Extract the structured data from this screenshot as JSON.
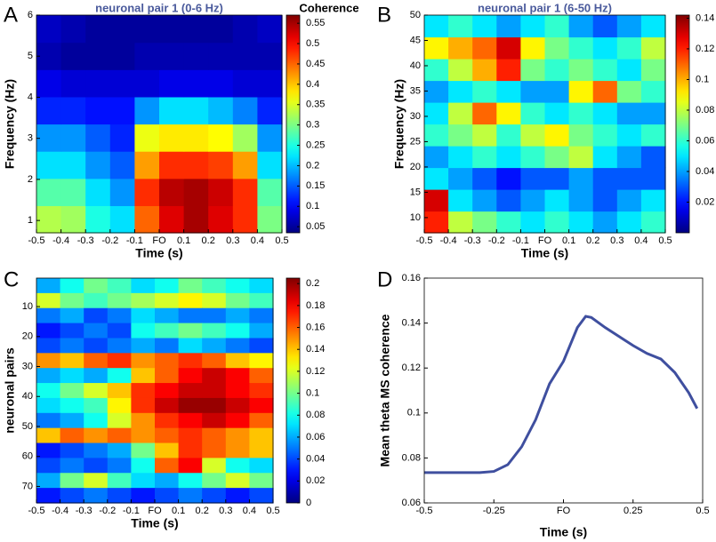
{
  "chart_data": [
    {
      "type": "heatmap",
      "label": "A",
      "title": "neuronal pair 1 (0-6 Hz)",
      "xlabel": "Time (s)",
      "ylabel": "Frequency (Hz)",
      "colorbar_label": "Coherence",
      "xlim": [
        -0.5,
        0.5
      ],
      "ylim": [
        0.7,
        6
      ],
      "clim": [
        0.035,
        0.57
      ],
      "xticks": [
        -0.5,
        -0.4,
        -0.3,
        -0.2,
        -0.1,
        {
          "value": 0,
          "label": "FO"
        },
        0.1,
        0.2,
        0.3,
        0.4,
        0.5
      ],
      "yticks": [
        1,
        2,
        3,
        4,
        5,
        6
      ],
      "cticks": [
        0.05,
        0.1,
        0.15,
        0.2,
        0.25,
        0.3,
        0.35,
        0.4,
        0.45,
        0.5,
        0.55
      ],
      "z": [
        [
          0.33,
          0.32,
          0.25,
          0.22,
          0.45,
          0.52,
          0.55,
          0.52,
          0.48,
          0.3
        ],
        [
          0.28,
          0.28,
          0.22,
          0.18,
          0.48,
          0.54,
          0.55,
          0.53,
          0.48,
          0.28
        ],
        [
          0.22,
          0.22,
          0.18,
          0.15,
          0.42,
          0.48,
          0.48,
          0.47,
          0.42,
          0.22
        ],
        [
          0.18,
          0.18,
          0.15,
          0.12,
          0.36,
          0.38,
          0.38,
          0.37,
          0.32,
          0.18
        ],
        [
          0.12,
          0.12,
          0.11,
          0.11,
          0.18,
          0.22,
          0.22,
          0.2,
          0.17,
          0.12
        ],
        [
          0.09,
          0.08,
          0.08,
          0.08,
          0.08,
          0.09,
          0.09,
          0.09,
          0.08,
          0.08
        ],
        [
          0.06,
          0.05,
          0.05,
          0.05,
          0.06,
          0.06,
          0.06,
          0.06,
          0.06,
          0.06
        ],
        [
          0.07,
          0.06,
          0.05,
          0.05,
          0.05,
          0.05,
          0.05,
          0.05,
          0.06,
          0.07
        ]
      ]
    },
    {
      "type": "heatmap",
      "label": "B",
      "title": "neuronal pair 1 (6-50 Hz)",
      "xlabel": "Time (s)",
      "ylabel": "Frequency (Hz)",
      "xlim": [
        -0.5,
        0.5
      ],
      "ylim": [
        7,
        50
      ],
      "clim": [
        0,
        0.142
      ],
      "xticks": [
        -0.5,
        -0.4,
        -0.3,
        -0.2,
        -0.1,
        {
          "value": 0,
          "label": "FO"
        },
        0.1,
        0.2,
        0.3,
        0.4,
        0.5
      ],
      "yticks": [
        10,
        15,
        20,
        25,
        30,
        35,
        40,
        45,
        50
      ],
      "cticks": [
        0.02,
        0.04,
        0.06,
        0.08,
        0.1,
        0.12,
        0.14
      ],
      "z": [
        [
          0.12,
          0.08,
          0.07,
          0.06,
          0.05,
          0.06,
          0.05,
          0.04,
          0.05,
          0.06
        ],
        [
          0.13,
          0.05,
          0.04,
          0.03,
          0.04,
          0.05,
          0.04,
          0.03,
          0.04,
          0.05
        ],
        [
          0.05,
          0.04,
          0.03,
          0.02,
          0.03,
          0.03,
          0.04,
          0.03,
          0.03,
          0.03
        ],
        [
          0.04,
          0.05,
          0.06,
          0.05,
          0.06,
          0.07,
          0.08,
          0.05,
          0.04,
          0.03
        ],
        [
          0.06,
          0.07,
          0.08,
          0.06,
          0.08,
          0.09,
          0.07,
          0.06,
          0.05,
          0.06
        ],
        [
          0.05,
          0.08,
          0.11,
          0.09,
          0.06,
          0.05,
          0.06,
          0.05,
          0.04,
          0.04
        ],
        [
          0.04,
          0.05,
          0.06,
          0.05,
          0.04,
          0.04,
          0.09,
          0.11,
          0.07,
          0.06
        ],
        [
          0.06,
          0.08,
          0.1,
          0.12,
          0.07,
          0.06,
          0.07,
          0.06,
          0.05,
          0.07
        ],
        [
          0.09,
          0.1,
          0.11,
          0.13,
          0.09,
          0.07,
          0.06,
          0.05,
          0.06,
          0.08
        ],
        [
          0.05,
          0.06,
          0.05,
          0.04,
          0.05,
          0.06,
          0.04,
          0.03,
          0.04,
          0.05
        ]
      ]
    },
    {
      "type": "heatmap",
      "label": "C",
      "xlabel": "Time (s)",
      "ylabel": "neuronal pairs",
      "y_inverted": true,
      "xlim": [
        -0.5,
        0.5
      ],
      "ylim": [
        0.5,
        75.5
      ],
      "clim": [
        0,
        0.205
      ],
      "xticks": [
        -0.5,
        -0.4,
        -0.3,
        -0.2,
        -0.1,
        {
          "value": 0,
          "label": "FO"
        },
        0.1,
        0.2,
        0.3,
        0.4,
        0.5
      ],
      "yticks": [
        10,
        20,
        30,
        40,
        50,
        60,
        70
      ],
      "cticks": [
        0,
        0.02,
        0.04,
        0.06,
        0.08,
        0.1,
        0.12,
        0.14,
        0.16,
        0.18,
        0.2
      ],
      "z": [
        [
          0.06,
          0.08,
          0.1,
          0.09,
          0.07,
          0.08,
          0.1,
          0.09,
          0.08,
          0.07
        ],
        [
          0.12,
          0.1,
          0.09,
          0.1,
          0.11,
          0.12,
          0.13,
          0.12,
          0.1,
          0.09
        ],
        [
          0.05,
          0.06,
          0.04,
          0.05,
          0.07,
          0.06,
          0.05,
          0.05,
          0.06,
          0.05
        ],
        [
          0.03,
          0.04,
          0.05,
          0.04,
          0.08,
          0.09,
          0.1,
          0.09,
          0.08,
          0.06
        ],
        [
          0.04,
          0.05,
          0.04,
          0.05,
          0.06,
          0.05,
          0.07,
          0.06,
          0.05,
          0.04
        ],
        [
          0.15,
          0.14,
          0.16,
          0.17,
          0.15,
          0.16,
          0.17,
          0.16,
          0.14,
          0.13
        ],
        [
          0.06,
          0.07,
          0.06,
          0.08,
          0.14,
          0.16,
          0.18,
          0.19,
          0.18,
          0.16
        ],
        [
          0.08,
          0.1,
          0.12,
          0.14,
          0.17,
          0.18,
          0.19,
          0.19,
          0.18,
          0.17
        ],
        [
          0.07,
          0.08,
          0.09,
          0.13,
          0.17,
          0.19,
          0.2,
          0.2,
          0.19,
          0.18
        ],
        [
          0.05,
          0.06,
          0.08,
          0.12,
          0.15,
          0.17,
          0.18,
          0.19,
          0.18,
          0.16
        ],
        [
          0.14,
          0.16,
          0.15,
          0.16,
          0.15,
          0.16,
          0.17,
          0.16,
          0.15,
          0.14
        ],
        [
          0.03,
          0.04,
          0.05,
          0.06,
          0.1,
          0.14,
          0.17,
          0.16,
          0.15,
          0.14
        ],
        [
          0.04,
          0.05,
          0.04,
          0.05,
          0.08,
          0.16,
          0.18,
          0.12,
          0.08,
          0.07
        ],
        [
          0.06,
          0.1,
          0.12,
          0.09,
          0.07,
          0.06,
          0.08,
          0.1,
          0.12,
          0.1
        ],
        [
          0.03,
          0.04,
          0.05,
          0.04,
          0.03,
          0.04,
          0.05,
          0.04,
          0.03,
          0.04
        ]
      ]
    },
    {
      "type": "line",
      "label": "D",
      "xlabel": "Time (s)",
      "ylabel": "Mean theta MS coherence",
      "color": "#3f4f9f",
      "xlim": [
        -0.5,
        0.5
      ],
      "ylim": [
        0.06,
        0.16
      ],
      "xticks": [
        -0.5,
        -0.25,
        {
          "value": 0,
          "label": "FO"
        },
        0.25,
        0.5
      ],
      "yticks": [
        0.06,
        0.08,
        0.1,
        0.12,
        0.14,
        0.16
      ],
      "x": [
        -0.5,
        -0.4,
        -0.3,
        -0.25,
        -0.2,
        -0.15,
        -0.1,
        -0.05,
        0,
        0.05,
        0.08,
        0.1,
        0.15,
        0.2,
        0.25,
        0.3,
        0.35,
        0.4,
        0.45,
        0.48
      ],
      "values": [
        0.0735,
        0.0735,
        0.0735,
        0.074,
        0.077,
        0.085,
        0.097,
        0.113,
        0.123,
        0.138,
        0.143,
        0.1425,
        0.138,
        0.134,
        0.13,
        0.1265,
        0.124,
        0.118,
        0.109,
        0.102
      ]
    }
  ]
}
